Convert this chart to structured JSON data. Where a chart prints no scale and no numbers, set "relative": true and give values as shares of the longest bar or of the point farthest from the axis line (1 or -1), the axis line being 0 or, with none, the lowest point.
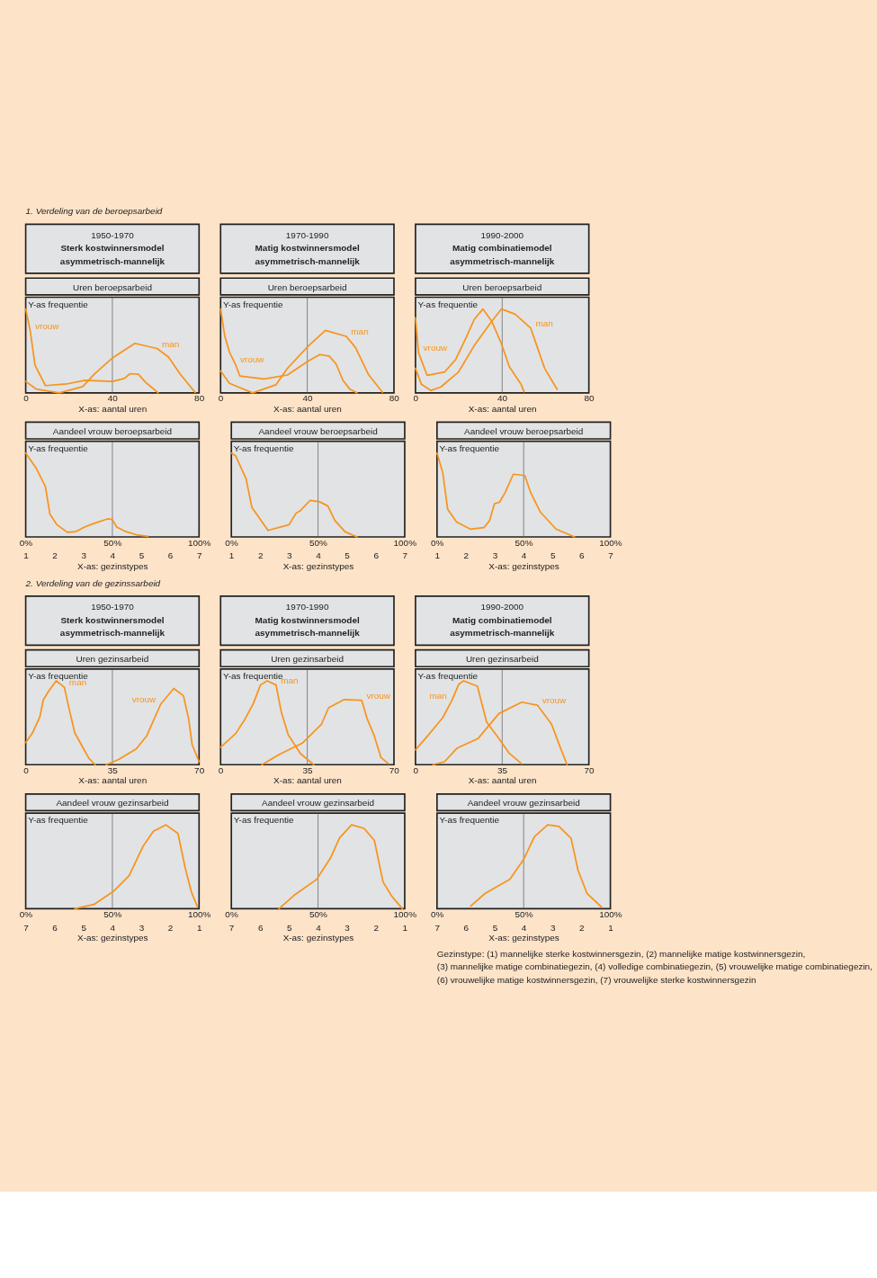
{
  "chart_data": [
    {
      "type": "line",
      "title": "Uren beroepsarbeid",
      "subtitle": "1950-1970\nSterk kostwinnersmodel\nasymmetrisch-mannelijk",
      "ylabel": "Y-as frequentie",
      "xlabel": "X-as: aantal uren",
      "relative": true,
      "xlim": [
        0,
        80
      ],
      "xticks": [
        0,
        40,
        80
      ],
      "ref_lines": [
        {
          "axis": "x",
          "value": 40
        }
      ],
      "series": [
        {
          "color": "#f7941d",
          "x": [
            0,
            2.1,
            4.3,
            9.1,
            18.8,
            27.3,
            40.2,
            45.6,
            48.2,
            52,
            55.2,
            58.4,
            61.1
          ],
          "values": [
            1,
            0.74,
            0.33,
            0.087,
            0.106,
            0.15,
            0.136,
            0.174,
            0.229,
            0.223,
            0.128,
            0.06,
            0
          ]
        },
        {
          "color": "#f7941d",
          "x": [
            0,
            4.8,
            15.5,
            26.3,
            31.6,
            40.2,
            50.4,
            60.6,
            65.9,
            71.3,
            78.2
          ],
          "values": [
            0.136,
            0.046,
            0,
            0.074,
            0.223,
            0.42,
            0.591,
            0.529,
            0.428,
            0.223,
            0.005
          ]
        }
      ],
      "annotations": [
        "1. Verdeling van de beroepsarbeid",
        {
          "text": "vrouw",
          "x": 2.1,
          "y": 0.74
        },
        {
          "text": "man",
          "x": 60.6,
          "y": 0.529
        }
      ]
    },
    {
      "type": "line",
      "title": "Uren beroepsarbeid",
      "subtitle": "1970-1990\nMatig kostwinnersmodel\nasymmetrisch-mannelijk",
      "ylabel": "Y-as frequentie",
      "xlabel": "X-as: aantal uren",
      "relative": true,
      "xlim": [
        0,
        80
      ],
      "xticks": [
        0,
        40,
        80
      ],
      "ref_lines": [
        {
          "axis": "x",
          "value": 40
        }
      ],
      "series": [
        {
          "color": "#f7941d",
          "x": [
            0,
            1.9,
            4.1,
            6.8,
            8.9,
            20.1,
            30.8,
            40.4,
            45.8,
            50.1,
            53.3,
            56.5,
            59.7,
            62.9
          ],
          "values": [
            1,
            0.681,
            0.486,
            0.344,
            0.202,
            0.167,
            0.213,
            0.379,
            0.457,
            0.44,
            0.344,
            0.149,
            0.043,
            0
          ]
        },
        {
          "color": "#f7941d",
          "x": [
            0,
            4.1,
            14.8,
            25.5,
            30.8,
            40.4,
            48.4,
            58.0,
            62.3,
            68.2,
            74.7
          ],
          "values": [
            0.262,
            0.113,
            0,
            0.096,
            0.291,
            0.557,
            0.745,
            0.674,
            0.539,
            0.22,
            0.007
          ]
        }
      ],
      "annotations": [
        {
          "text": "vrouw",
          "x": 6.8,
          "y": 0.344
        },
        {
          "text": "man",
          "x": 58.0,
          "y": 0.674
        }
      ]
    },
    {
      "type": "line",
      "title": "Uren beroepsarbeid",
      "subtitle": "1990-2000\nMatig combinatiemodel\nasymmetrisch-mannelijk",
      "ylabel": "Y-as frequentie",
      "xlabel": "X-as: aantal uren",
      "relative": true,
      "xlim": [
        0,
        80
      ],
      "xticks": [
        0,
        40,
        80
      ],
      "ref_lines": [
        {
          "axis": "x",
          "value": 40
        }
      ],
      "series": [
        {
          "color": "#f7941d",
          "x": [
            0,
            1.4,
            5.4,
            13.5,
            18.5,
            23.5,
            27.1,
            31.1,
            35.2,
            39.7,
            43.3,
            48.7,
            50.1
          ],
          "values": [
            0.896,
            0.479,
            0.208,
            0.25,
            0.396,
            0.667,
            0.875,
            1,
            0.854,
            0.583,
            0.313,
            0.104,
            0.013
          ]
        },
        {
          "color": "#f7941d",
          "x": [
            0,
            2.7,
            7.2,
            11.7,
            19.9,
            27.1,
            35.2,
            39.7,
            46.0,
            53.2,
            59.6,
            65.4
          ],
          "values": [
            0.292,
            0.104,
            0.029,
            0.071,
            0.25,
            0.563,
            0.854,
            1,
            0.938,
            0.771,
            0.292,
            0.042
          ]
        }
      ],
      "annotations": [
        {
          "text": "vrouw",
          "x": 1.4,
          "y": 0.479
        },
        {
          "text": "man",
          "x": 53.2,
          "y": 0.771
        }
      ]
    },
    {
      "type": "line",
      "title": "Aandeel vrouw beroepsarbeid",
      "ylabel": "Y-as frequentie",
      "xlabel": "X-as: gezinstypes",
      "relative": true,
      "xlim": [
        1,
        7
      ],
      "xticks": [
        1,
        2,
        3,
        4,
        5,
        6,
        7
      ],
      "x2lim": [
        0,
        100
      ],
      "x2ticks": [
        {
          "value": 0,
          "label": "0%"
        },
        {
          "value": 50,
          "label": "50%"
        },
        {
          "value": 100,
          "label": "100%"
        }
      ],
      "ref_lines": [
        {
          "axis": "x",
          "value": 4
        }
      ],
      "series": [
        {
          "color": "#f7941d",
          "x": [
            1,
            1.36,
            1.68,
            1.84,
            2.08,
            2.44,
            2.72,
            3.04,
            3.35,
            3.83,
            3.99,
            4.15,
            4.47,
            4.87,
            5.23
          ],
          "values": [
            1,
            0.821,
            0.601,
            0.27,
            0.146,
            0.055,
            0.063,
            0.118,
            0.16,
            0.215,
            0.209,
            0.118,
            0.063,
            0.022,
            0.008
          ]
        }
      ]
    },
    {
      "type": "line",
      "title": "Aandeel vrouw beroepsarbeid",
      "ylabel": "Y-as frequentie",
      "xlabel": "X-as: gezinstypes",
      "relative": true,
      "xlim": [
        1,
        7
      ],
      "xticks": [
        1,
        2,
        3,
        4,
        5,
        6,
        7
      ],
      "x2lim": [
        0,
        100
      ],
      "x2ticks": [
        {
          "value": 0,
          "label": "0%"
        },
        {
          "value": 50,
          "label": "50%"
        },
        {
          "value": 100,
          "label": "100%"
        }
      ],
      "ref_lines": [
        {
          "axis": "x",
          "value": 4
        }
      ],
      "series": [
        {
          "color": "#f7941d",
          "x": [
            1,
            1.15,
            1.51,
            1.71,
            1.87,
            2.27,
            3.0,
            3.24,
            3.4,
            3.73,
            4.05,
            4.34,
            4.58,
            4.94,
            5.35
          ],
          "values": [
            1,
            0.966,
            0.693,
            0.352,
            0.273,
            0.078,
            0.147,
            0.283,
            0.317,
            0.437,
            0.42,
            0.369,
            0.198,
            0.061,
            0
          ]
        }
      ]
    },
    {
      "type": "line",
      "title": "Aandeel vrouw beroepsarbeid",
      "ylabel": "Y-as frequentie",
      "xlabel": "X-as: gezinstypes",
      "relative": true,
      "xlim": [
        1,
        7
      ],
      "xticks": [
        1,
        2,
        3,
        4,
        5,
        6,
        7
      ],
      "x2lim": [
        0,
        100
      ],
      "x2ticks": [
        {
          "value": 0,
          "label": "0%"
        },
        {
          "value": 50,
          "label": "50%"
        },
        {
          "value": 100,
          "label": "100%"
        }
      ],
      "ref_lines": [
        {
          "axis": "x",
          "value": 4
        }
      ],
      "series": [
        {
          "color": "#f7941d",
          "x": [
            1,
            1.2,
            1.37,
            1.68,
            2.15,
            2.62,
            2.82,
            2.99,
            3.16,
            3.36,
            3.64,
            4.04,
            4.24,
            4.58,
            5.12,
            5.76
          ],
          "values": [
            1,
            0.765,
            0.329,
            0.178,
            0.094,
            0.111,
            0.195,
            0.396,
            0.413,
            0.53,
            0.748,
            0.732,
            0.53,
            0.295,
            0.094,
            0
          ]
        }
      ]
    },
    {
      "type": "line",
      "title": "Uren gezinsarbeid",
      "subtitle": "1950-1970\nSterk kostwinnersmodel\nasymmetrisch-mannelijk",
      "ylabel": "Y-as frequentie",
      "xlabel": "X-as: aantal uren",
      "relative": true,
      "xlim": [
        0,
        70
      ],
      "xticks": [
        0,
        35,
        70
      ],
      "ref_lines": [
        {
          "axis": "x",
          "value": 35
        }
      ],
      "series": [
        {
          "color": "#f7941d",
          "x": [
            0,
            2.8,
            5.7,
            7.1,
            9.2,
            12.3,
            15.6,
            17.7,
            19.8,
            23.3,
            25.5,
            28.0
          ],
          "values": [
            0.264,
            0.381,
            0.569,
            0.772,
            0.873,
            1,
            0.924,
            0.645,
            0.381,
            0.193,
            0.076,
            0
          ]
        },
        {
          "color": "#f7941d",
          "x": [
            32.5,
            37.5,
            44.6,
            48.8,
            54.5,
            59.8,
            63.7,
            65.8,
            67.2,
            70.0
          ],
          "values": [
            0,
            0.061,
            0.188,
            0.34,
            0.721,
            0.909,
            0.822,
            0.543,
            0.239,
            0.036
          ]
        }
      ],
      "annotations": [
        "2. Verdeling van de gezinssarbeid",
        {
          "text": "man",
          "x": 15.6,
          "y": 0.924
        },
        {
          "text": "vrouw",
          "x": 54.5,
          "y": 0.721
        }
      ]
    },
    {
      "type": "line",
      "title": "Uren gezinsarbeid",
      "subtitle": "1970-1990\nMatig kostwinnersmodel\nasymmetrisch-mannelijk",
      "ylabel": "Y-as frequentie",
      "xlabel": "X-as: aantal uren",
      "relative": true,
      "xlim": [
        0,
        70
      ],
      "xticks": [
        0,
        35,
        70
      ],
      "ref_lines": [
        {
          "axis": "x",
          "value": 35
        }
      ],
      "series": [
        {
          "color": "#f7941d",
          "x": [
            0,
            6.1,
            9.6,
            13.2,
            16.1,
            18.8,
            22.4,
            24.5,
            27.3,
            32.2,
            37.6
          ],
          "values": [
            0.208,
            0.371,
            0.53,
            0.728,
            0.95,
            1,
            0.95,
            0.629,
            0.356,
            0.134,
            0
          ]
        },
        {
          "color": "#f7941d",
          "x": [
            16.7,
            23.8,
            33.0,
            40.7,
            43.6,
            49.9,
            57.0,
            59.1,
            61.9,
            64.8,
            67.9
          ],
          "values": [
            0,
            0.124,
            0.257,
            0.48,
            0.678,
            0.777,
            0.767,
            0.554,
            0.356,
            0.084,
            0.01
          ]
        }
      ],
      "annotations": [
        {
          "text": "man",
          "x": 22.4,
          "y": 0.95
        },
        {
          "text": "vrouw",
          "x": 57.0,
          "y": 0.767
        }
      ]
    },
    {
      "type": "line",
      "title": "Uren gezinsarbeid",
      "subtitle": "1990-2000\nMatig combinatiemodel\nasymmetrisch-mannelijk",
      "ylabel": "Y-as frequentie",
      "xlabel": "X-as: aantal uren",
      "relative": true,
      "xlim": [
        0,
        70
      ],
      "xticks": [
        0,
        35,
        70
      ],
      "ref_lines": [
        {
          "axis": "x",
          "value": 35
        }
      ],
      "series": [
        {
          "color": "#f7941d",
          "x": [
            0,
            5.4,
            11.0,
            14.6,
            17.5,
            19.4,
            25.0,
            28.7,
            33.7,
            37.9,
            42.9
          ],
          "values": [
            0.175,
            0.36,
            0.56,
            0.76,
            0.96,
            1,
            0.935,
            0.51,
            0.31,
            0.135,
            0.01
          ]
        },
        {
          "color": "#f7941d",
          "x": [
            7.1,
            11.7,
            16.7,
            25.2,
            33.7,
            42.9,
            49.2,
            54.9,
            58.4,
            61.2
          ],
          "values": [
            0,
            0.035,
            0.195,
            0.31,
            0.61,
            0.745,
            0.71,
            0.485,
            0.21,
            0
          ]
        }
      ],
      "annotations": [
        {
          "text": "man",
          "x": 14.6,
          "y": 0.76
        },
        {
          "text": "vrouw",
          "x": 49.2,
          "y": 0.71
        }
      ]
    },
    {
      "type": "line",
      "title": "Aandeel vrouw gezinsarbeid",
      "ylabel": "Y-as frequentie",
      "xlabel": "X-as: gezinstypes",
      "relative": true,
      "xlim": [
        7,
        1
      ],
      "xticks": [
        7,
        6,
        5,
        4,
        3,
        2,
        1
      ],
      "x2lim": [
        0,
        100
      ],
      "x2ticks": [
        {
          "value": 0,
          "label": "0%"
        },
        {
          "value": 50,
          "label": "50%"
        },
        {
          "value": 100,
          "label": "100%"
        }
      ],
      "ref_lines": [
        {
          "axis": "x",
          "value": 4
        }
      ],
      "series": [
        {
          "color": "#f7941d",
          "x": [
            5.3,
            4.64,
            3.97,
            3.42,
            2.94,
            2.58,
            2.15,
            1.73,
            1.48,
            1.27,
            1.06
          ],
          "values": [
            0,
            0.051,
            0.205,
            0.395,
            0.744,
            0.923,
            1,
            0.897,
            0.487,
            0.205,
            0.026
          ]
        }
      ]
    },
    {
      "type": "line",
      "title": "Aandeel vrouw gezinsarbeid",
      "ylabel": "Y-as frequentie",
      "xlabel": "X-as: gezinstypes",
      "relative": true,
      "xlim": [
        7,
        1
      ],
      "xticks": [
        7,
        6,
        5,
        4,
        3,
        2,
        1
      ],
      "x2lim": [
        0,
        100
      ],
      "x2ticks": [
        {
          "value": 0,
          "label": "0%"
        },
        {
          "value": 50,
          "label": "50%"
        },
        {
          "value": 100,
          "label": "100%"
        }
      ],
      "ref_lines": [
        {
          "axis": "x",
          "value": 4
        }
      ],
      "series": [
        {
          "color": "#f7941d",
          "x": [
            5.35,
            4.84,
            4.05,
            3.56,
            3.26,
            2.84,
            2.41,
            2.05,
            1.75,
            1.44,
            1.08
          ],
          "values": [
            0,
            0.157,
            0.349,
            0.61,
            0.843,
            1,
            0.959,
            0.814,
            0.32,
            0.145,
            0
          ]
        }
      ]
    },
    {
      "type": "line",
      "title": "Aandeel vrouw gezinsarbeid",
      "ylabel": "Y-as frequentie",
      "xlabel": "X-as: gezinstypes",
      "relative": true,
      "xlim": [
        7,
        1
      ],
      "xticks": [
        7,
        6,
        5,
        4,
        3,
        2,
        1
      ],
      "x2lim": [
        0,
        100
      ],
      "x2ticks": [
        {
          "value": 0,
          "label": "0%"
        },
        {
          "value": 50,
          "label": "50%"
        },
        {
          "value": 100,
          "label": "100%"
        }
      ],
      "ref_lines": [
        {
          "axis": "x",
          "value": 4
        }
      ],
      "series": [
        {
          "color": "#f7941d",
          "x": [
            5.84,
            5.33,
            4.48,
            3.99,
            3.63,
            3.17,
            2.78,
            2.36,
            2.12,
            1.81,
            1.3
          ],
          "values": [
            0.031,
            0.184,
            0.35,
            0.595,
            0.859,
            1,
            0.982,
            0.84,
            0.46,
            0.184,
            0.018
          ]
        }
      ],
      "annotations": [
        "Gezinstype: (1) mannelijke sterke kostwinnersgezin, (2) mannelijke matige kostwinnersgezin,",
        "(3) mannelijke matige combinatiegezin, (4) volledige combinatiegezin, (5) vrouwelijke matige combinatiegezin,",
        "(6) vrouwelijke matige kostwinnersgezin, (7) vrouwelijke sterke kostwinnersgezin"
      ]
    }
  ]
}
